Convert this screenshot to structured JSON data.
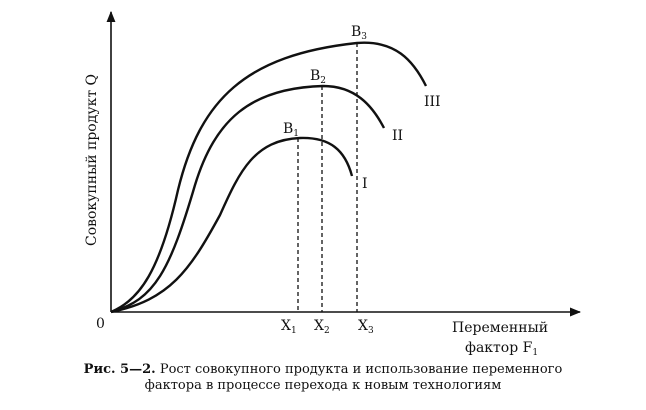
{
  "axes": {
    "y_label": "Совокупный продукт Q",
    "x_label_line1": "Переменный",
    "x_label_line2": "фактор F",
    "x_label_sub": "1",
    "origin": "0"
  },
  "curves": [
    {
      "roman": "I",
      "peak_letter": "B",
      "peak_index": "1",
      "x_letter": "X",
      "x_index": "1"
    },
    {
      "roman": "II",
      "peak_letter": "B",
      "peak_index": "2",
      "x_letter": "X",
      "x_index": "2"
    },
    {
      "roman": "III",
      "peak_letter": "B",
      "peak_index": "3",
      "x_letter": "X",
      "x_index": "3"
    }
  ],
  "caption": {
    "label": "Рис. 5—2.",
    "line1": "Рост совокупного продукта и использование переменного",
    "line2": "фактора в процессе перехода к новым технологиям"
  }
}
